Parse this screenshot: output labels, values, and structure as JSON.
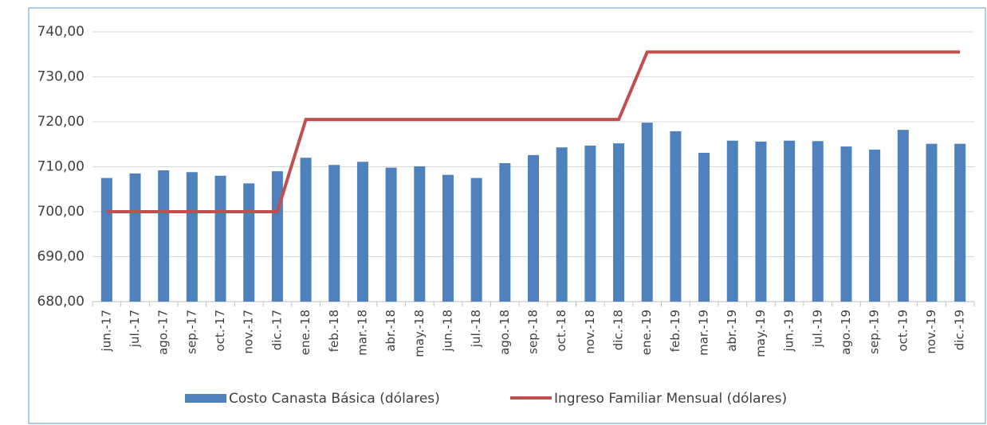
{
  "chart_data": {
    "type": "bar-line",
    "categories": [
      "jun.-17",
      "jul.-17",
      "ago.-17",
      "sep.-17",
      "oct.-17",
      "nov.-17",
      "dic.-17",
      "ene.-18",
      "feb.-18",
      "mar.-18",
      "abr.-18",
      "may.-18",
      "jun.-18",
      "jul.-18",
      "ago.-18",
      "sep.-18",
      "oct.-18",
      "nov.-18",
      "dic.-18",
      "ene.-19",
      "feb.-19",
      "mar.-19",
      "abr.-19",
      "may.-19",
      "jun.-19",
      "jul.-19",
      "ago.-19",
      "sep.-19",
      "oct.-19",
      "nov.-19",
      "dic.-19"
    ],
    "series": [
      {
        "name": "Costo Canasta Básica (dólares)",
        "type": "bar",
        "color": "#4f81bd",
        "values": [
          707.5,
          708.5,
          709.2,
          708.8,
          708.0,
          706.3,
          709.0,
          712.0,
          710.4,
          711.1,
          709.8,
          710.1,
          708.2,
          707.5,
          710.8,
          712.6,
          714.3,
          714.7,
          715.2,
          719.8,
          717.9,
          713.1,
          715.8,
          715.6,
          715.8,
          715.7,
          714.5,
          713.8,
          718.2,
          715.1,
          715.1
        ]
      },
      {
        "name": "Ingreso Familiar Mensual (dólares)",
        "type": "line",
        "color": "#c0504d",
        "values": [
          700,
          700,
          700,
          700,
          700,
          700,
          700,
          720.5,
          720.5,
          720.5,
          720.5,
          720.5,
          720.5,
          720.5,
          720.5,
          720.5,
          720.5,
          720.5,
          720.5,
          735.5,
          735.5,
          735.5,
          735.5,
          735.5,
          735.5,
          735.5,
          735.5,
          735.5,
          735.5,
          735.5,
          735.5
        ]
      }
    ],
    "ylim": [
      680,
      740
    ],
    "yticks": [
      {
        "value": 680,
        "label": "680,00"
      },
      {
        "value": 690,
        "label": "690,00"
      },
      {
        "value": 700,
        "label": "700,00"
      },
      {
        "value": 710,
        "label": "710,00"
      },
      {
        "value": 720,
        "label": "720,00"
      },
      {
        "value": 730,
        "label": "730,00"
      },
      {
        "value": 740,
        "label": "740,00"
      }
    ],
    "grid": true,
    "legend": "bottom"
  }
}
